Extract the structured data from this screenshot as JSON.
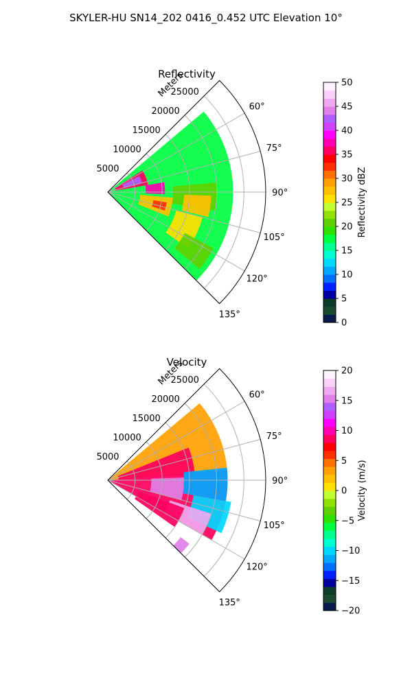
{
  "figure": {
    "title": "SKYLER-HU  SN14_202  0416_0.452 UTC Elevation 10°"
  },
  "chart_data": [
    {
      "type": "heatmap",
      "title": "Reflectivity",
      "radial_label": "Meters",
      "radial_ticks": [
        5000,
        10000,
        15000,
        20000,
        25000
      ],
      "radial_tick_labels": [
        "5000",
        "10000",
        "15000",
        "20000",
        "25000"
      ],
      "rlim": [
        0,
        29000
      ],
      "theta_ticks": [
        60,
        75,
        90,
        105,
        120,
        135
      ],
      "theta_tick_labels": [
        "60°",
        "75°",
        "90°",
        "105°",
        "120°",
        "135°"
      ],
      "theta_range_deg": [
        45,
        135
      ],
      "colorbar": {
        "label": "Reflectivity dBZ",
        "range": [
          0,
          50
        ],
        "ticks": [
          0,
          5,
          10,
          15,
          20,
          25,
          30,
          35,
          40,
          45,
          50
        ],
        "tick_labels": [
          "0",
          "5",
          "10",
          "15",
          "20",
          "25",
          "30",
          "35",
          "40",
          "45",
          "50"
        ],
        "colors": [
          "#0a1a4a",
          "#1a4a30",
          "#0d3d2a",
          "#0000a0",
          "#0020ff",
          "#0070ff",
          "#00a8ff",
          "#00d8ff",
          "#00ffd0",
          "#00ff90",
          "#00ff40",
          "#30e000",
          "#60d000",
          "#90e000",
          "#c0ff30",
          "#ffe000",
          "#ffc000",
          "#ffa000",
          "#ff7000",
          "#ff3000",
          "#ff0000",
          "#ff0060",
          "#ff00b0",
          "#ff00ff",
          "#d040ff",
          "#b060ff",
          "#e080e8",
          "#f0a8f0",
          "#f8d0f8",
          "#fff0ff"
        ]
      },
      "series": [
        {
          "az": [
            50,
            135
          ],
          "r": [
            500,
            23000
          ],
          "value": 18
        },
        {
          "az": [
            58,
            80
          ],
          "r": [
            1500,
            7500
          ],
          "value": 36
        },
        {
          "az": [
            63,
            75
          ],
          "r": [
            3000,
            6500
          ],
          "value": 42
        },
        {
          "az": [
            80,
            92
          ],
          "r": [
            7000,
            10500
          ],
          "value": 38
        },
        {
          "az": [
            95,
            112
          ],
          "r": [
            6000,
            12000
          ],
          "value": 27
        },
        {
          "az": [
            100,
            108
          ],
          "r": [
            8500,
            11000
          ],
          "value": 33
        },
        {
          "az": [
            105,
            125
          ],
          "r": [
            13000,
            18000
          ],
          "value": 26
        },
        {
          "az": [
            85,
            100
          ],
          "r": [
            12000,
            20000
          ],
          "value": 20
        },
        {
          "az": [
            92,
            104
          ],
          "r": [
            14000,
            19000
          ],
          "value": 28
        },
        {
          "az": [
            118,
            130
          ],
          "r": [
            16000,
            22000
          ],
          "value": 20
        }
      ]
    },
    {
      "type": "heatmap",
      "title": "Velocity",
      "radial_label": "Meters",
      "radial_ticks": [
        5000,
        10000,
        15000,
        20000,
        25000
      ],
      "radial_tick_labels": [
        "5000",
        "10000",
        "15000",
        "20000",
        "25000"
      ],
      "rlim": [
        0,
        29000
      ],
      "theta_ticks": [
        60,
        75,
        90,
        105,
        120,
        135
      ],
      "theta_tick_labels": [
        "60°",
        "75°",
        "90°",
        "105°",
        "120°",
        "135°"
      ],
      "theta_range_deg": [
        45,
        135
      ],
      "colorbar": {
        "label": "Velocity (m/s)",
        "range": [
          -20,
          20
        ],
        "ticks": [
          -20,
          -15,
          -10,
          -5,
          0,
          5,
          10,
          15,
          20
        ],
        "tick_labels": [
          "−20",
          "−15",
          "−10",
          "−5",
          "0",
          "5",
          "10",
          "15",
          "20"
        ],
        "colors": [
          "#0a1a4a",
          "#1a4a30",
          "#0d3d2a",
          "#0000a0",
          "#0020ff",
          "#0070ff",
          "#00a8ff",
          "#00d8ff",
          "#00ffd0",
          "#00ff90",
          "#00ff40",
          "#30e000",
          "#60d000",
          "#90e000",
          "#c0ff30",
          "#ffe000",
          "#ffc000",
          "#ffa000",
          "#ff7000",
          "#ff3000",
          "#ff0000",
          "#ff0060",
          "#ff00b0",
          "#ff00ff",
          "#d040ff",
          "#b060ff",
          "#e080e8",
          "#f0a8f0",
          "#f8d0f8",
          "#fff0ff"
        ]
      },
      "series": [
        {
          "az": [
            50,
            85
          ],
          "r": [
            500,
            22000
          ],
          "value": 3
        },
        {
          "az": [
            68,
            86
          ],
          "r": [
            2000,
            16000
          ],
          "value": 8
        },
        {
          "az": [
            85,
            120
          ],
          "r": [
            500,
            22000
          ],
          "value": 9
        },
        {
          "az": [
            88,
            105
          ],
          "r": [
            8000,
            14000
          ],
          "value": 15
        },
        {
          "az": [
            84,
            100
          ],
          "r": [
            14000,
            22000
          ],
          "value": -11
        },
        {
          "az": [
            100,
            115
          ],
          "r": [
            16000,
            23000
          ],
          "value": -10
        },
        {
          "az": [
            108,
            120
          ],
          "r": [
            12000,
            20000
          ],
          "value": 17
        },
        {
          "az": [
            110,
            125
          ],
          "r": [
            6000,
            15000
          ],
          "value": 8
        },
        {
          "az": [
            128,
            135
          ],
          "r": [
            17000,
            19000
          ],
          "value": 15
        }
      ]
    }
  ]
}
